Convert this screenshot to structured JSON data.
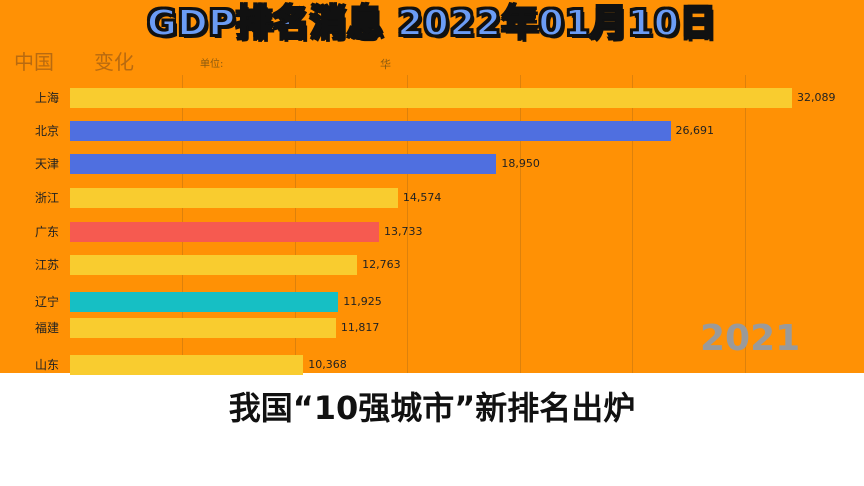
{
  "overlay_title": "GDP排名消息 2022年01月10日",
  "background_title": "中国",
  "background_title_end": "变化",
  "background_unit": "单位:",
  "background_source": "华",
  "year_label": "2021",
  "subtitle": "我国“10强城市”新排名出炉",
  "chart_data": {
    "type": "bar",
    "orientation": "horizontal",
    "categories": [
      "上海",
      "北京",
      "天津",
      "浙江",
      "广东",
      "江苏",
      "辽宁",
      "福建",
      "山东"
    ],
    "values": [
      32089,
      26691,
      18950,
      14574,
      13733,
      12763,
      11925,
      11817,
      10368
    ],
    "value_labels": [
      "32,089",
      "26,691",
      "18,950",
      "14,574",
      "13,733",
      "12,763",
      "11,925",
      "11,817",
      "10,368"
    ],
    "colors": [
      "#F9CC2F",
      "#4F6FE0",
      "#4F6FE0",
      "#F9CC2F",
      "#F65A50",
      "#F9CC2F",
      "#16BFC4",
      "#F9CC2F",
      "#F9CC2F"
    ],
    "xlim": [
      0,
      32089
    ],
    "grid": true,
    "background": "#FF9105"
  }
}
